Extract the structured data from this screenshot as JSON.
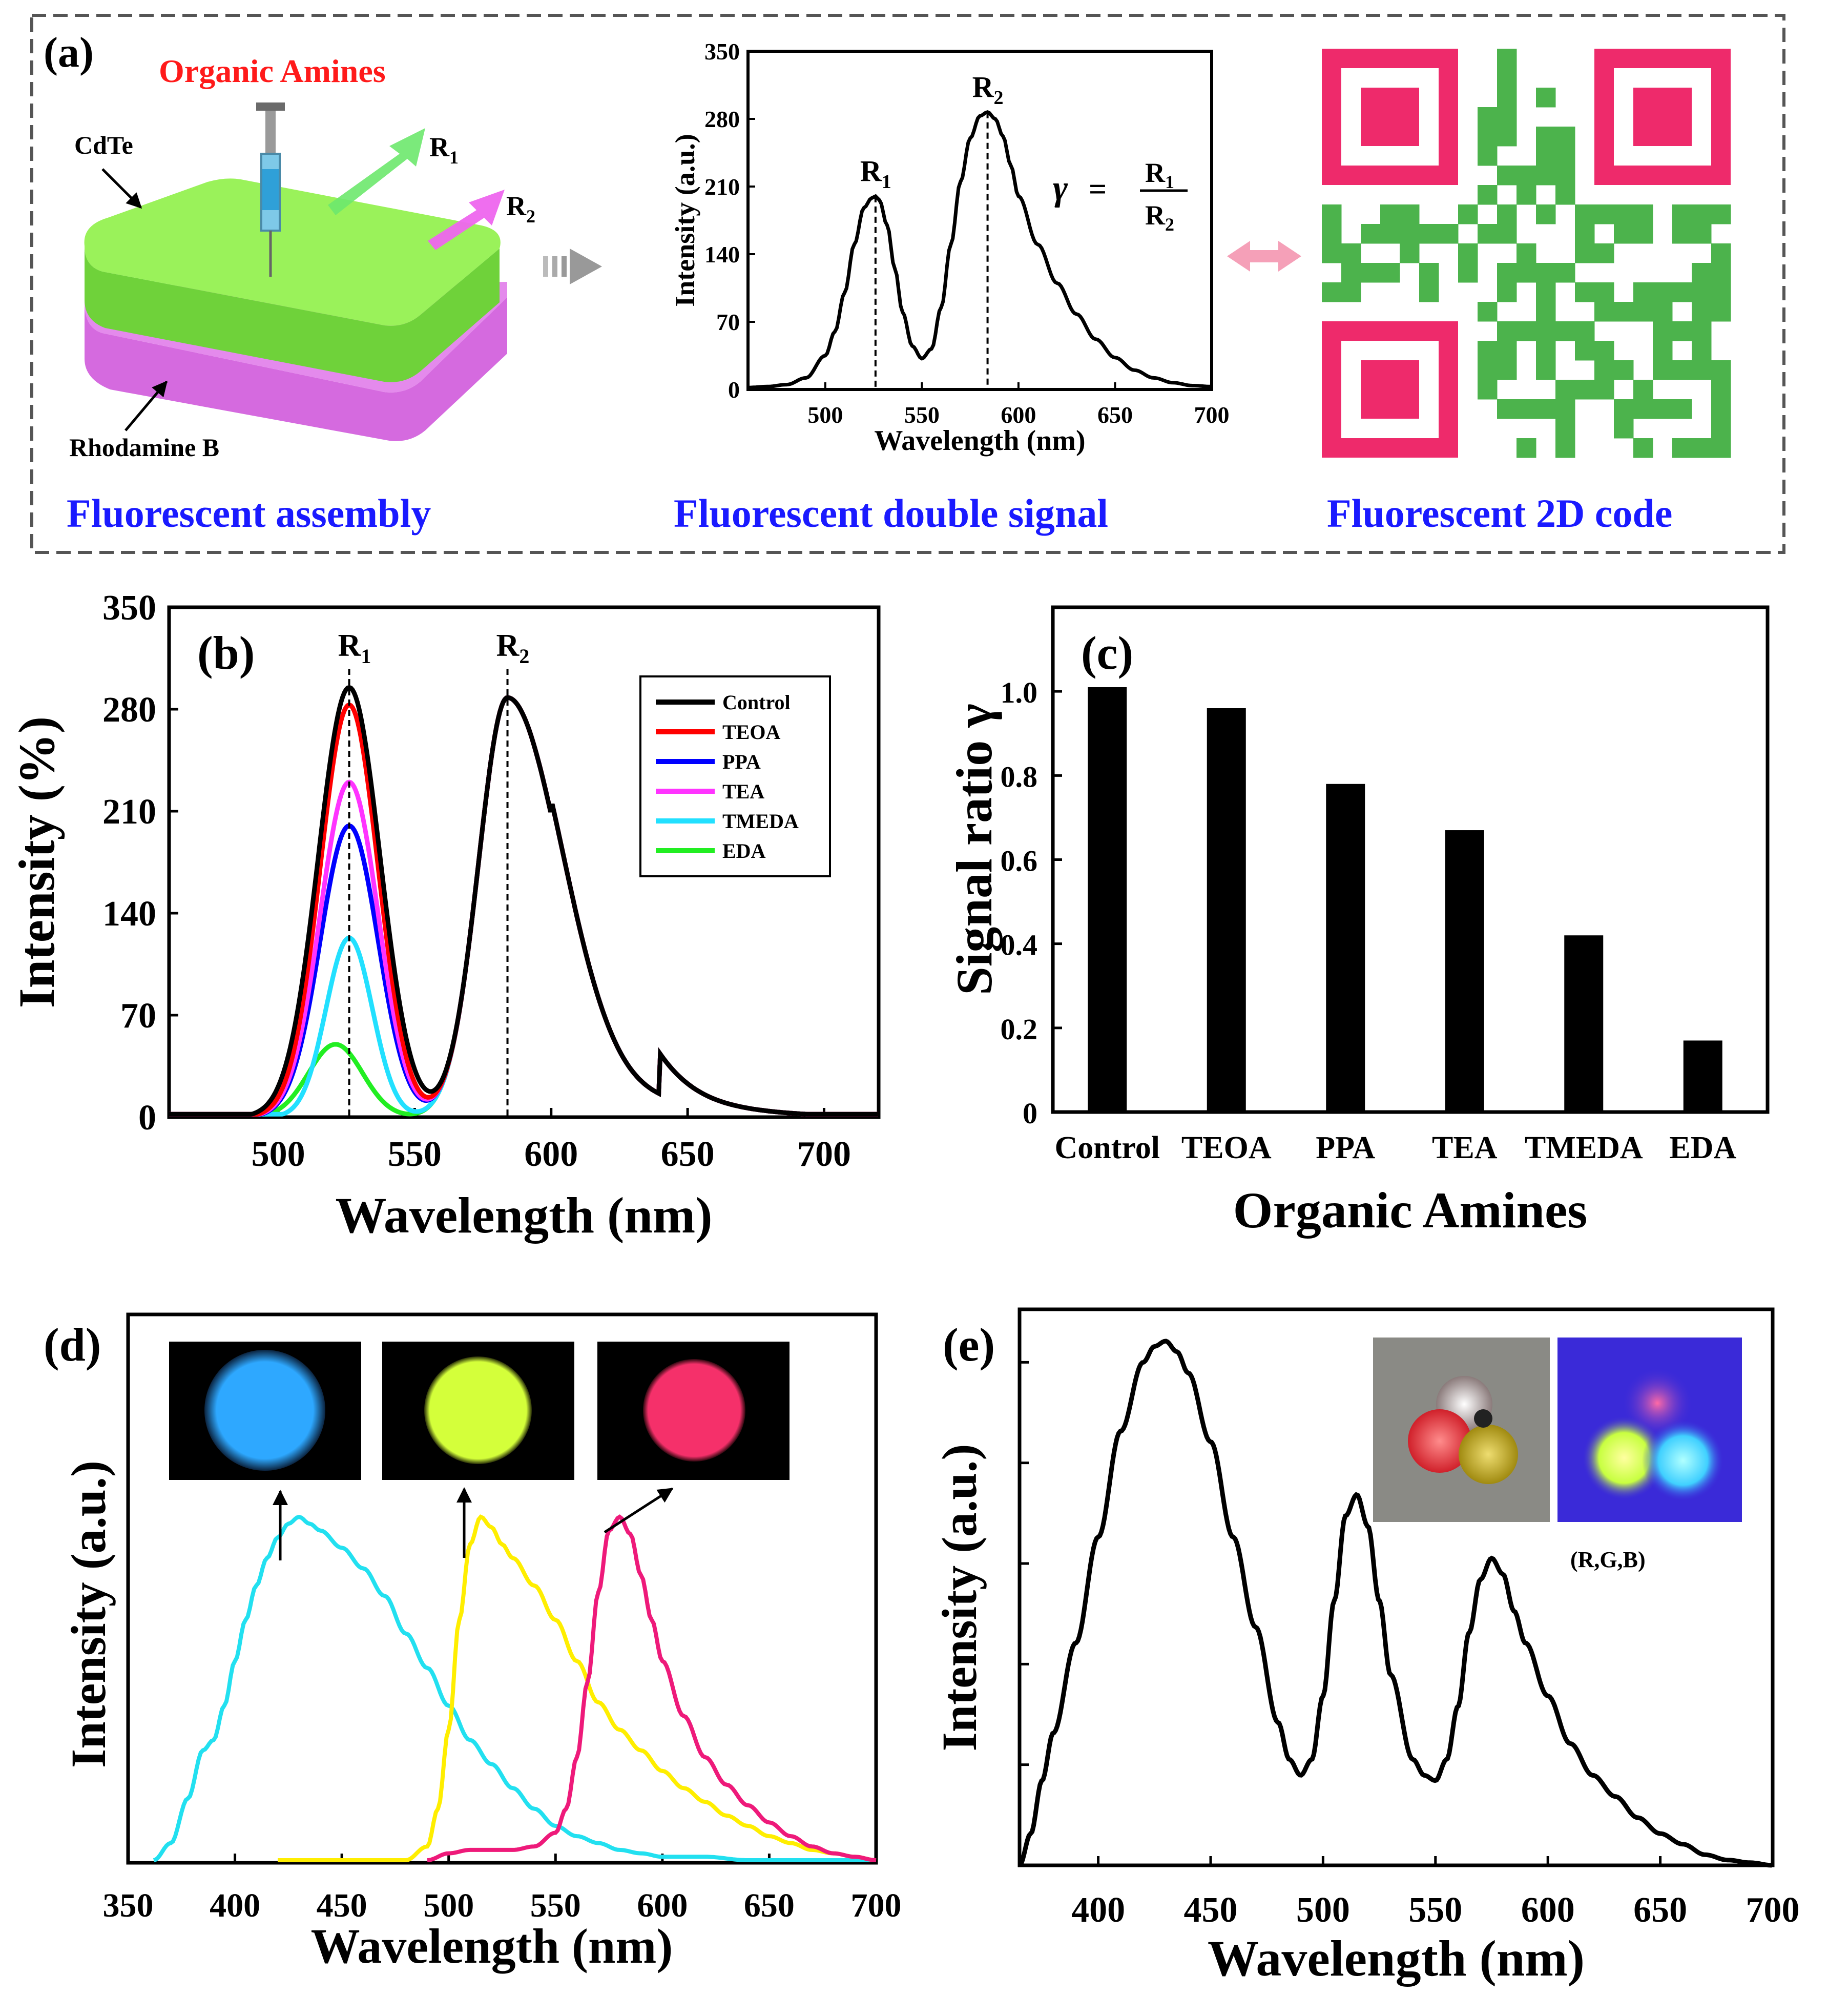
{
  "colors": {
    "green_layer": "#7ee23a",
    "magenta_layer": "#d56adf",
    "qr_green": "#4cb34c",
    "qr_frame": "#ee2a6b",
    "caption_blue": "#1a1aff",
    "title_red": "#ff1a1a"
  },
  "panel_a": {
    "label": "(a)",
    "title": "Organic Amines",
    "cdte_label": "CdTe",
    "rhodamine_label": "Rhodamine B",
    "r1_label": "R",
    "r1_sub": "1",
    "r2_label": "R",
    "r2_sub": "2",
    "caption_assembly": "Fluorescent assembly",
    "caption_signal": "Fluorescent double signal",
    "caption_code": "Fluorescent 2D code",
    "formula_gamma": "γ",
    "formula_eq": "=",
    "formula_num": "R",
    "formula_num_sub": "1",
    "formula_den": "R",
    "formula_den_sub": "2"
  },
  "chart_data": [
    {
      "panel": "(a) inset",
      "type": "line",
      "title": "",
      "xlabel": "Wavelength (nm)",
      "ylabel": "Intensity (a.u.)",
      "xlim": [
        460,
        700
      ],
      "ylim": [
        0,
        350
      ],
      "xticks": [
        500,
        550,
        600,
        650,
        700
      ],
      "yticks": [
        0,
        70,
        140,
        210,
        280,
        350
      ],
      "peaks": [
        {
          "label": "R",
          "sub": "1",
          "x": 526,
          "y": 200
        },
        {
          "label": "R",
          "sub": "2",
          "x": 584,
          "y": 287
        }
      ],
      "series": [
        {
          "name": "spectrum",
          "x": [
            460,
            470,
            480,
            490,
            500,
            505,
            510,
            515,
            520,
            524,
            526,
            528,
            532,
            536,
            540,
            545,
            550,
            555,
            560,
            565,
            570,
            575,
            580,
            584,
            588,
            592,
            596,
            600,
            610,
            620,
            630,
            640,
            650,
            660,
            670,
            680,
            690,
            700
          ],
          "y": [
            2,
            3,
            5,
            12,
            35,
            60,
            100,
            150,
            188,
            198,
            200,
            196,
            170,
            125,
            80,
            45,
            32,
            42,
            85,
            150,
            215,
            260,
            283,
            287,
            280,
            262,
            232,
            200,
            150,
            110,
            78,
            52,
            33,
            20,
            12,
            7,
            4,
            3
          ]
        }
      ]
    },
    {
      "panel": "(b)",
      "type": "line",
      "xlabel": "Wavelength (nm)",
      "ylabel": "Intensity (%)",
      "xlim": [
        460,
        720
      ],
      "ylim": [
        0,
        350
      ],
      "xticks": [
        500,
        550,
        600,
        650,
        700
      ],
      "yticks": [
        0,
        70,
        140,
        210,
        280,
        350
      ],
      "peak_labels": [
        {
          "label": "R",
          "sub": "1",
          "x": 526
        },
        {
          "label": "R",
          "sub": "2",
          "x": 584
        }
      ],
      "legend": [
        "Control",
        "TEOA",
        "PPA",
        "TEA",
        "TMEDA",
        "EDA"
      ],
      "series": [
        {
          "name": "Control",
          "color": "#000000",
          "r1": 295,
          "w1": 16,
          "r1x": 526
        },
        {
          "name": "TEOA",
          "color": "#ff0000",
          "r1": 283,
          "w1": 15,
          "r1x": 526
        },
        {
          "name": "PPA",
          "color": "#0000ff",
          "r1": 200,
          "w1": 15,
          "r1x": 526
        },
        {
          "name": "TEA",
          "color": "#ff33ff",
          "r1": 230,
          "w1": 15,
          "r1x": 526
        },
        {
          "name": "TMEDA",
          "color": "#22e0ff",
          "r1": 123,
          "w1": 12,
          "r1x": 526
        },
        {
          "name": "EDA",
          "color": "#22ee22",
          "r1": 50,
          "w1": 14,
          "r1x": 521
        }
      ],
      "r2_peak": {
        "x": 584,
        "y": 288
      }
    },
    {
      "panel": "(c)",
      "type": "bar",
      "xlabel": "Organic Amines",
      "ylabel": "Signal ratio γ",
      "categories": [
        "Control",
        "TEOA",
        "PPA",
        "TEA",
        "TMEDA",
        "EDA"
      ],
      "values": [
        1.01,
        0.96,
        0.78,
        0.67,
        0.42,
        0.17
      ],
      "ylim": [
        0,
        1.2
      ],
      "yticks": [
        0,
        0.2,
        0.4,
        0.6,
        0.8,
        1.0
      ],
      "ytick_labels": [
        "0",
        "0.2",
        "0.4",
        "0.6",
        "0.8",
        "1.0"
      ]
    },
    {
      "panel": "(d)",
      "type": "line",
      "xlabel": "Wavelength (nm)",
      "ylabel": "Intensity (a.u.)",
      "xlim": [
        350,
        700
      ],
      "xticks": [
        350,
        400,
        450,
        500,
        550,
        600,
        650,
        700
      ],
      "series": [
        {
          "name": "blue-emitter",
          "color": "#22e0f0",
          "x": [
            362,
            370,
            378,
            385,
            390,
            395,
            400,
            405,
            410,
            415,
            420,
            425,
            430,
            435,
            440,
            450,
            460,
            470,
            480,
            490,
            500,
            510,
            520,
            530,
            540,
            550,
            560,
            570,
            580,
            590,
            600,
            620,
            640,
            660,
            680,
            700
          ],
          "y": [
            0,
            5,
            18,
            32,
            35,
            45,
            58,
            70,
            80,
            88,
            94,
            98,
            100,
            98,
            96,
            91,
            85,
            77,
            66,
            56,
            45,
            35,
            28,
            21,
            15,
            10,
            7,
            5,
            3,
            2,
            1,
            1,
            0,
            0,
            0,
            0
          ]
        },
        {
          "name": "yellow-emitter",
          "color": "#ffee00",
          "x": [
            420,
            440,
            460,
            480,
            490,
            495,
            500,
            505,
            510,
            515,
            520,
            525,
            530,
            540,
            550,
            560,
            570,
            580,
            590,
            600,
            610,
            620,
            630,
            640,
            650,
            660,
            670,
            680,
            690,
            700
          ],
          "y": [
            0,
            0,
            0,
            0,
            4,
            15,
            38,
            70,
            92,
            100,
            97,
            92,
            88,
            80,
            70,
            58,
            46,
            38,
            32,
            26,
            21,
            17,
            13,
            10,
            7,
            5,
            3,
            2,
            1,
            0
          ]
        },
        {
          "name": "red-emitter",
          "color": "#ee1a7a",
          "x": [
            490,
            500,
            510,
            520,
            530,
            540,
            550,
            555,
            560,
            565,
            570,
            575,
            580,
            585,
            590,
            595,
            600,
            610,
            620,
            630,
            640,
            650,
            660,
            670,
            680,
            690,
            700
          ],
          "y": [
            0,
            2,
            3,
            3,
            3,
            4,
            8,
            15,
            30,
            52,
            78,
            96,
            100,
            95,
            83,
            70,
            58,
            42,
            30,
            22,
            16,
            11,
            7,
            4,
            2,
            1,
            0
          ]
        }
      ],
      "insets": [
        {
          "name": "blue-glow-disk",
          "color": "#2ea8ff"
        },
        {
          "name": "yellow-glow-disk",
          "color": "#d4ff3a"
        },
        {
          "name": "red-glow-disk",
          "color": "#f5306a"
        }
      ]
    },
    {
      "panel": "(e)",
      "type": "line",
      "xlabel": "Wavelength (nm)",
      "ylabel": "Intensity (a.u.)",
      "xlim": [
        365,
        700
      ],
      "ylim": [
        0,
        1.05
      ],
      "xticks": [
        400,
        450,
        500,
        550,
        600,
        650,
        700
      ],
      "series": [
        {
          "name": "white-light-spectrum",
          "color": "#000000",
          "x": [
            365,
            370,
            375,
            380,
            390,
            400,
            410,
            420,
            425,
            430,
            435,
            440,
            450,
            460,
            470,
            480,
            485,
            490,
            495,
            500,
            505,
            510,
            515,
            520,
            525,
            530,
            540,
            545,
            550,
            555,
            560,
            565,
            570,
            575,
            580,
            585,
            590,
            600,
            610,
            620,
            630,
            640,
            650,
            660,
            670,
            680,
            690,
            700
          ],
          "y": [
            0,
            0.06,
            0.16,
            0.25,
            0.42,
            0.62,
            0.82,
            0.95,
            0.98,
            0.99,
            0.97,
            0.93,
            0.8,
            0.62,
            0.45,
            0.27,
            0.2,
            0.17,
            0.2,
            0.32,
            0.5,
            0.66,
            0.7,
            0.64,
            0.5,
            0.36,
            0.2,
            0.17,
            0.16,
            0.2,
            0.3,
            0.44,
            0.54,
            0.58,
            0.55,
            0.48,
            0.42,
            0.32,
            0.23,
            0.17,
            0.13,
            0.09,
            0.06,
            0.04,
            0.02,
            0.01,
            0.005,
            0
          ]
        }
      ],
      "inset_caption": "(R,G,B)"
    }
  ],
  "panel_b": {
    "label": "(b)"
  },
  "panel_c": {
    "label": "(c)"
  },
  "panel_d": {
    "label": "(d)"
  },
  "panel_e": {
    "label": "(e)"
  }
}
